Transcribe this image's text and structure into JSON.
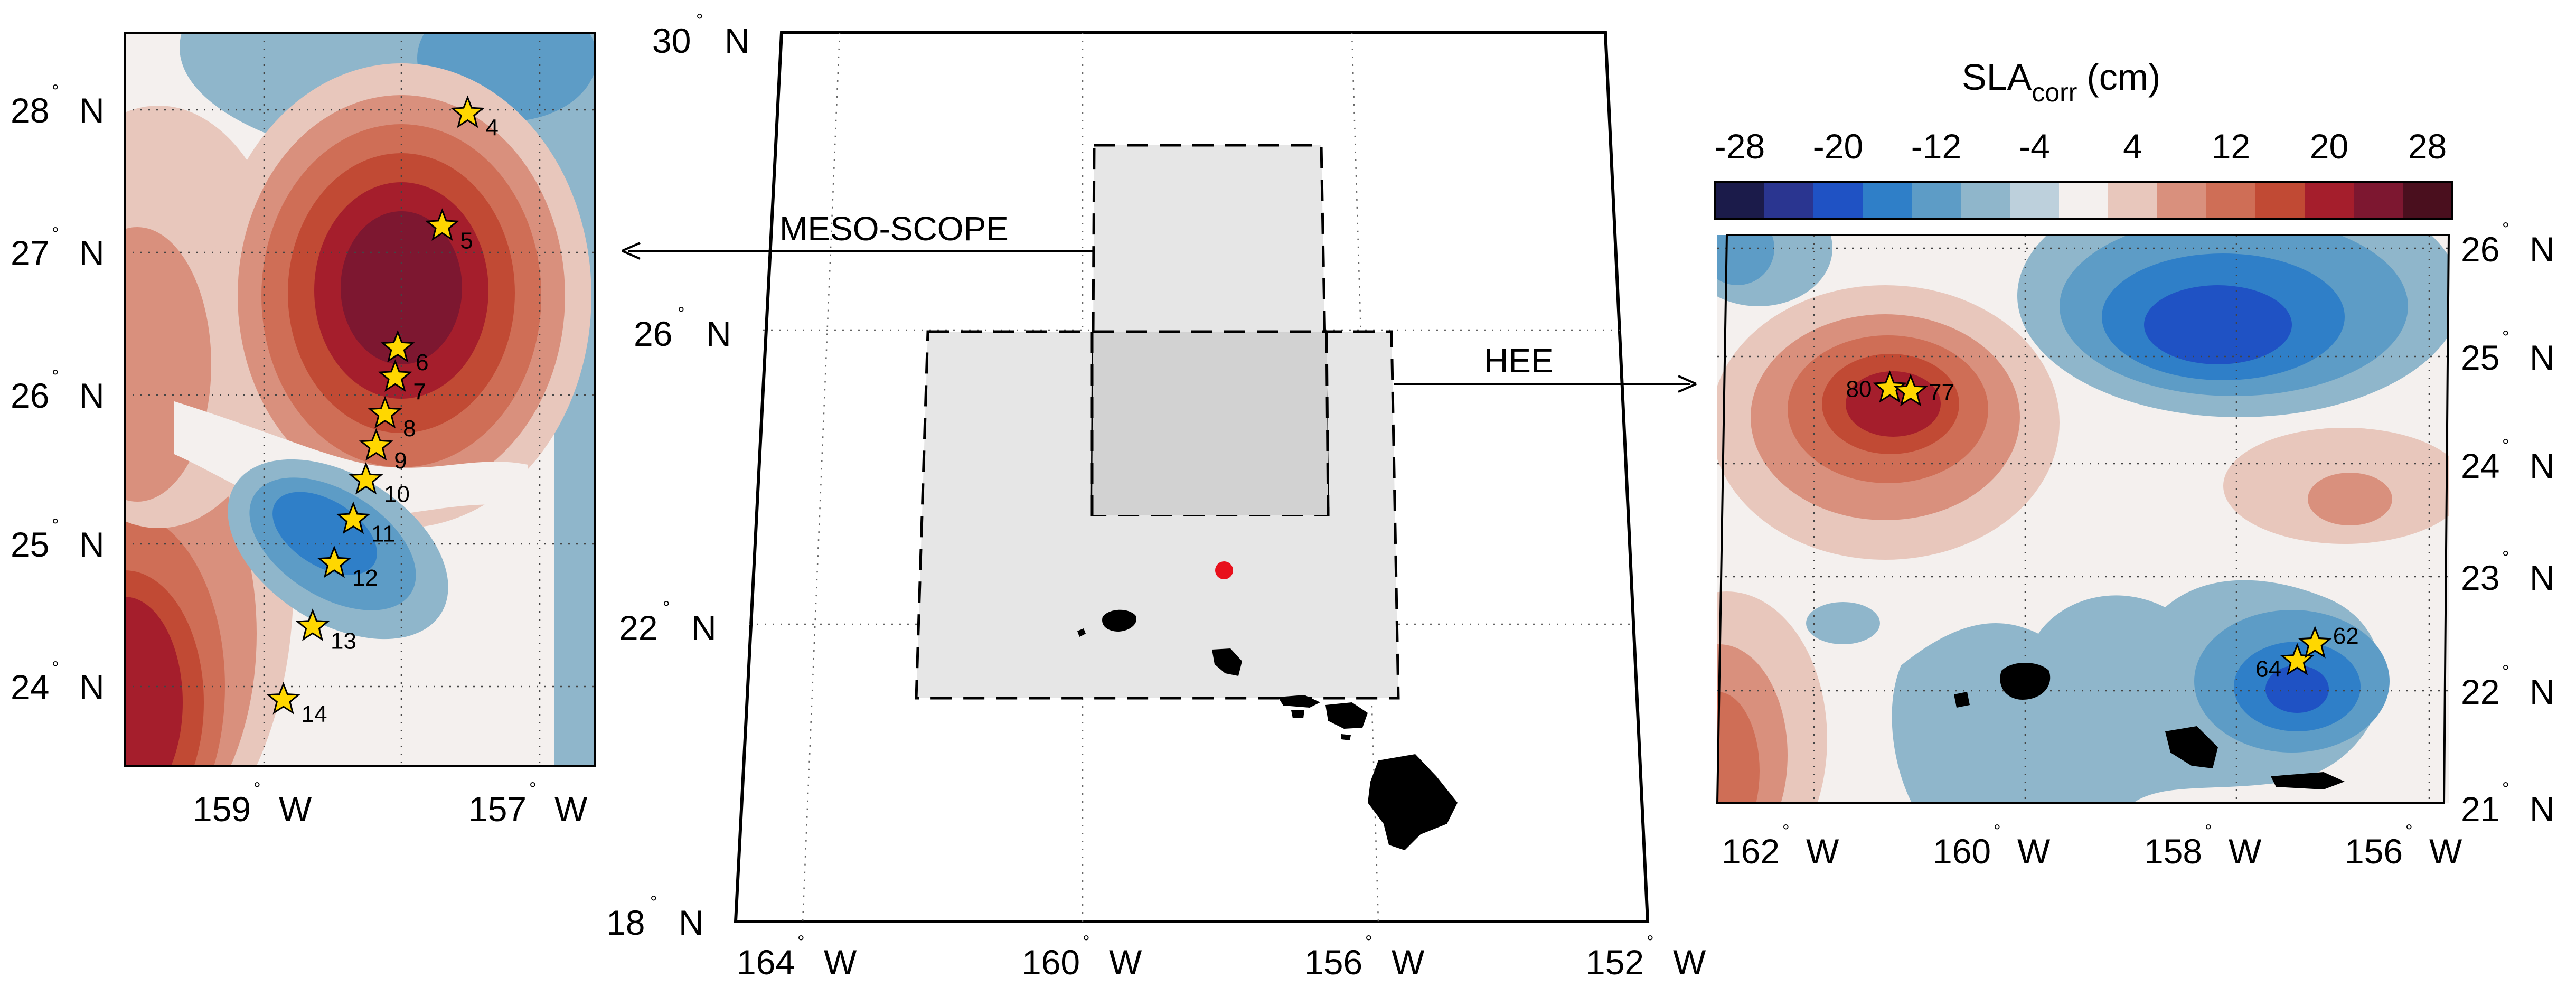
{
  "colors": {
    "negative": [
      "#1b1b4a",
      "#2a3590",
      "#1f52c4",
      "#2f7fc8",
      "#5d9cc6",
      "#8fb6cb",
      "#bdd0dc"
    ],
    "neutral": "#f4f0ee",
    "positive": [
      "#e8c7bc",
      "#d9907d",
      "#cf6e56",
      "#c14a34",
      "#a51e2c",
      "#7d1730",
      "#4a0f1e"
    ],
    "star": "#ffd700",
    "island": "#000000",
    "region": "#e6e6e6",
    "overlap": "#d2d2d2",
    "marker": "#e8101c"
  },
  "colorbar": {
    "title_main": "SLA",
    "title_sub": "corr",
    "title_unit": "(cm)",
    "ticks": [
      "-28",
      "-20",
      "-12",
      "-4",
      "4",
      "12",
      "20",
      "28"
    ]
  },
  "labels": {
    "meso": "MESO-SCOPE",
    "hee": "HEE"
  },
  "left_map": {
    "lat_ticks": [
      "28",
      "27",
      "26",
      "25",
      "24"
    ],
    "lon_ticks": [
      "159",
      "157"
    ],
    "lat_hemi": "N",
    "lon_hemi": "W"
  },
  "center_map": {
    "lat_ticks": [
      "30",
      "26",
      "22",
      "18"
    ],
    "lon_ticks": [
      "164",
      "160",
      "156",
      "152"
    ],
    "lat_hemi": "N",
    "lon_hemi": "W"
  },
  "right_map": {
    "lat_ticks": [
      "26",
      "25",
      "24",
      "23",
      "22",
      "21"
    ],
    "lon_ticks": [
      "162",
      "160",
      "158",
      "156"
    ],
    "lat_hemi": "N",
    "lon_hemi": "W"
  },
  "chart_data": [
    {
      "type": "heatmap",
      "panel": "left",
      "title": "",
      "lat_range": [
        23.5,
        28.5
      ],
      "lon_range": [
        -160.0,
        -156.3
      ],
      "stations": [
        {
          "id": "4",
          "lon": -157.3,
          "lat": 27.95
        },
        {
          "id": "5",
          "lon": -157.5,
          "lat": 27.18
        },
        {
          "id": "6",
          "lon": -157.85,
          "lat": 26.35
        },
        {
          "id": "7",
          "lon": -157.87,
          "lat": 26.15
        },
        {
          "id": "8",
          "lon": -157.95,
          "lat": 25.9
        },
        {
          "id": "9",
          "lon": -158.02,
          "lat": 25.68
        },
        {
          "id": "10",
          "lon": -158.1,
          "lat": 25.45
        },
        {
          "id": "11",
          "lon": -158.2,
          "lat": 25.18
        },
        {
          "id": "12",
          "lon": -158.35,
          "lat": 24.88
        },
        {
          "id": "13",
          "lon": -158.52,
          "lat": 24.45
        },
        {
          "id": "14",
          "lon": -158.75,
          "lat": 23.95
        }
      ]
    },
    {
      "type": "scatter",
      "panel": "center",
      "title": "",
      "lat_range": [
        18,
        30
      ],
      "lon_range": [
        -164,
        -152
      ],
      "regions": [
        {
          "name": "MESO-SCOPE",
          "lon_range": [
            -160,
            -156.5
          ],
          "lat_range": [
            23.5,
            28.5
          ]
        },
        {
          "name": "HEE",
          "lon_range": [
            -162,
            -156
          ],
          "lat_range": [
            21,
            26
          ]
        }
      ],
      "marker": {
        "lon": -158,
        "lat": 22.75
      }
    },
    {
      "type": "heatmap",
      "panel": "right",
      "title": "",
      "lat_range": [
        21,
        26
      ],
      "lon_range": [
        -162.5,
        -155.5
      ],
      "stations": [
        {
          "id": "80",
          "lon": -160.85,
          "lat": 24.65
        },
        {
          "id": "77",
          "lon": -160.65,
          "lat": 24.62
        },
        {
          "id": "64",
          "lon": -156.95,
          "lat": 22.25
        },
        {
          "id": "62",
          "lon": -156.78,
          "lat": 22.4
        }
      ]
    }
  ]
}
